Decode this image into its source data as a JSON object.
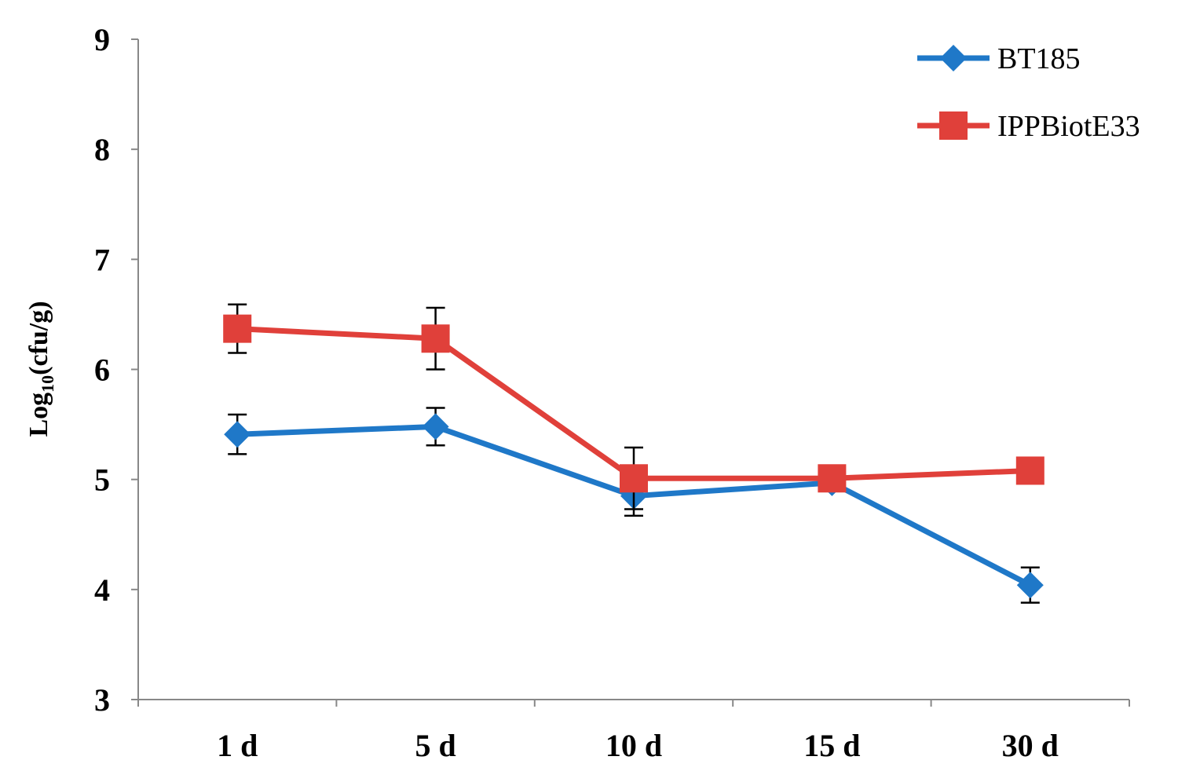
{
  "chart_data": {
    "type": "line",
    "title": "",
    "xlabel": "",
    "ylabel": {
      "prefix": "Log",
      "subscript": "10",
      "suffix": "(cfu/g)"
    },
    "categories": [
      "1 d",
      "5 d",
      "10 d",
      "15 d",
      "30 d"
    ],
    "ylim": [
      3,
      9
    ],
    "yticks": [
      "3",
      "4",
      "5",
      "6",
      "7",
      "8",
      "9"
    ],
    "grid": false,
    "legend_position": "top-right",
    "series": [
      {
        "name": "BT185",
        "color": "#1f78c8",
        "marker": "diamond",
        "values": [
          5.41,
          5.48,
          4.85,
          4.97,
          4.04
        ],
        "errors": [
          0.18,
          0.17,
          0.18,
          0.05,
          0.16
        ]
      },
      {
        "name": "IPPBiotE33",
        "color": "#e0403a",
        "marker": "square",
        "values": [
          6.37,
          6.28,
          5.01,
          5.01,
          5.08
        ],
        "errors": [
          0.22,
          0.28,
          0.28,
          0.05,
          0.05
        ]
      }
    ]
  }
}
